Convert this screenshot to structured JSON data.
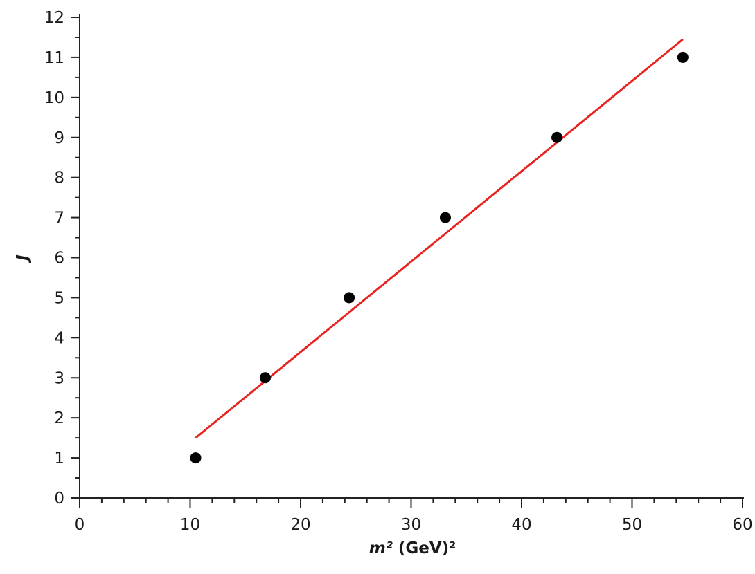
{
  "chart_data": {
    "type": "scatter",
    "xlabel": "m² (GeV)²",
    "xlabel_var": "m²",
    "xlabel_unit": " (GeV)²",
    "ylabel": "J",
    "xlim": [
      0,
      60
    ],
    "ylim": [
      0,
      12
    ],
    "x_ticks": [
      "0",
      "10",
      "20",
      "30",
      "40",
      "50",
      "60"
    ],
    "y_ticks": [
      "0",
      "1",
      "2",
      "3",
      "4",
      "5",
      "6",
      "7",
      "8",
      "9",
      "10",
      "11",
      "12"
    ],
    "grid": false,
    "series": [
      {
        "type": "scatter",
        "x": [
          10.5,
          16.8,
          24.4,
          33.1,
          43.2,
          54.6
        ],
        "y": [
          1,
          3,
          5,
          7,
          9,
          11
        ],
        "color": "#000000"
      },
      {
        "type": "line",
        "x": [
          10.5,
          54.6
        ],
        "y": [
          1.5,
          11.45
        ],
        "color": "#e8231f"
      }
    ]
  }
}
